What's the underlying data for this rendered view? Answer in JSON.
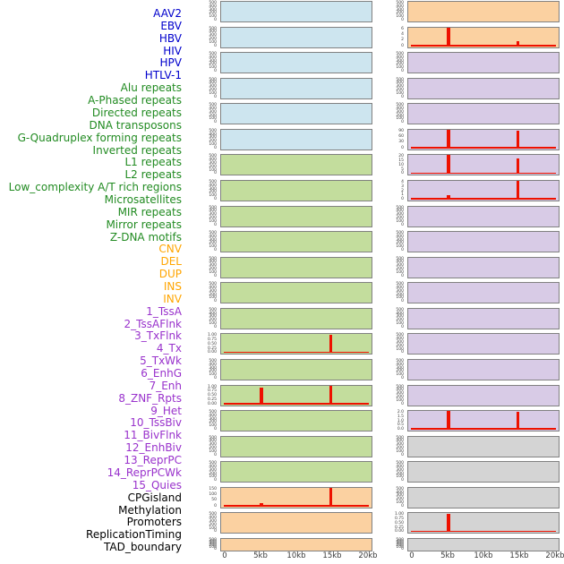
{
  "chart_data": {
    "type": "bar",
    "title": "",
    "layout": {
      "description": "Small-multiples spike/bar tracks: 44 genomic features in 2 columns of 22 panels, column-major order; flat feature-name list on the left",
      "columns": 2,
      "rows_per_column": 22,
      "order": "column-major",
      "grid": false,
      "last_row_short": true
    },
    "x_axis": {
      "ticks": [
        "0",
        "5kb",
        "10kb",
        "15kb",
        "20kb"
      ],
      "range_kb": [
        0,
        20
      ]
    },
    "default_yticks": [
      "500",
      "400",
      "300",
      "200",
      "100",
      "0"
    ],
    "colors": {
      "label": {
        "virus": "#0000cc",
        "repeat": "#228b22",
        "sv": "#ffa500",
        "chromatin": "#9932cc",
        "other": "#000000"
      },
      "bg": {
        "virus": "#cde5ef",
        "repeat": "#c3dd9d",
        "sv": "#fbd1a1",
        "chromatin": "#d8cbe6",
        "other": "#d4d4d4"
      },
      "spike": "#ee1100",
      "border": "#818181",
      "tick_text": "#3b3b3b",
      "axis_text": "#3a3a3a",
      "page_bg": "#ffffff"
    },
    "features": [
      {
        "name": "AAV2",
        "group": "virus"
      },
      {
        "name": "EBV",
        "group": "virus"
      },
      {
        "name": "HBV",
        "group": "virus"
      },
      {
        "name": "HIV",
        "group": "virus"
      },
      {
        "name": "HPV",
        "group": "virus"
      },
      {
        "name": "HTLV-1",
        "group": "virus"
      },
      {
        "name": "Alu repeats",
        "group": "repeat"
      },
      {
        "name": "A-Phased repeats",
        "group": "repeat"
      },
      {
        "name": "Directed repeats",
        "group": "repeat"
      },
      {
        "name": "DNA transposons",
        "group": "repeat"
      },
      {
        "name": "G-Quadruplex forming repeats",
        "group": "repeat"
      },
      {
        "name": "Inverted repeats",
        "group": "repeat"
      },
      {
        "name": "L1 repeats",
        "group": "repeat"
      },
      {
        "name": "L2 repeats",
        "group": "repeat",
        "yticks": [
          "1.00",
          "0.75",
          "0.50",
          "0.25",
          "0.00"
        ],
        "baseline": true,
        "spikes": [
          {
            "kb": 15,
            "frac": 0.735,
            "h": 1.02,
            "value": 1.0
          }
        ]
      },
      {
        "name": "Low_complexity A/T rich regions",
        "group": "repeat"
      },
      {
        "name": "Microsatellites",
        "group": "repeat",
        "yticks": [
          "1.00",
          "0.75",
          "0.50",
          "0.25",
          "0.00"
        ],
        "baseline": true,
        "spikes": [
          {
            "kb": 5,
            "frac": 0.25,
            "h": 0.95,
            "value": 0.95
          },
          {
            "kb": 15,
            "frac": 0.735,
            "h": 1.02,
            "value": 1.0
          }
        ]
      },
      {
        "name": "MIR repeats",
        "group": "repeat"
      },
      {
        "name": "Mirror repeats",
        "group": "repeat"
      },
      {
        "name": "Z-DNA motifs",
        "group": "repeat"
      },
      {
        "name": "CNV",
        "group": "sv",
        "yticks": [
          "150",
          "100",
          "50",
          "0"
        ],
        "baseline": true,
        "spikes": [
          {
            "kb": 5,
            "frac": 0.25,
            "h": 0.2,
            "value": 30
          },
          {
            "kb": 15,
            "frac": 0.735,
            "h": 1.1,
            "value": 170
          }
        ]
      },
      {
        "name": "DEL",
        "group": "sv"
      },
      {
        "name": "DUP",
        "group": "sv"
      },
      {
        "name": "INS",
        "group": "sv"
      },
      {
        "name": "INV",
        "group": "sv",
        "yticks": [
          "6",
          "4",
          "2",
          "0"
        ],
        "baseline": true,
        "spikes": [
          {
            "kb": 5,
            "frac": 0.25,
            "h": 1.1,
            "value": 7
          },
          {
            "kb": 15,
            "frac": 0.735,
            "h": 0.3,
            "value": 2
          }
        ]
      },
      {
        "name": "1_TssA",
        "group": "chromatin"
      },
      {
        "name": "2_TssAFlnk",
        "group": "chromatin"
      },
      {
        "name": "3_TxFlnk",
        "group": "chromatin"
      },
      {
        "name": "4_Tx",
        "group": "chromatin",
        "yticks": [
          "90",
          "60",
          "30",
          "0"
        ],
        "baseline": true,
        "spikes": [
          {
            "kb": 5,
            "frac": 0.25,
            "h": 1.1,
            "value": 95
          },
          {
            "kb": 15,
            "frac": 0.735,
            "h": 0.97,
            "value": 90
          }
        ]
      },
      {
        "name": "5_TxWk",
        "group": "chromatin",
        "yticks": [
          "20",
          "15",
          "10",
          "5",
          "0"
        ],
        "baseline": true,
        "spikes": [
          {
            "kb": 5,
            "frac": 0.25,
            "h": 1.1,
            "value": 21
          },
          {
            "kb": 15,
            "frac": 0.735,
            "h": 0.87,
            "value": 18
          }
        ]
      },
      {
        "name": "6_EnhG",
        "group": "chromatin",
        "yticks": [
          "4",
          "3",
          "2",
          "1",
          "0"
        ],
        "baseline": true,
        "spikes": [
          {
            "kb": 5,
            "frac": 0.25,
            "h": 0.25,
            "value": 1
          },
          {
            "kb": 15,
            "frac": 0.735,
            "h": 1.1,
            "value": 4.2
          }
        ]
      },
      {
        "name": "7_Enh",
        "group": "chromatin"
      },
      {
        "name": "8_ZNF_Rpts",
        "group": "chromatin"
      },
      {
        "name": "9_Het",
        "group": "chromatin"
      },
      {
        "name": "10_TssBiv",
        "group": "chromatin"
      },
      {
        "name": "11_BivFlnk",
        "group": "chromatin"
      },
      {
        "name": "12_EnhBiv",
        "group": "chromatin"
      },
      {
        "name": "13_ReprPC",
        "group": "chromatin"
      },
      {
        "name": "14_ReprPCWk",
        "group": "chromatin"
      },
      {
        "name": "15_Quies",
        "group": "chromatin",
        "yticks": [
          "2.0",
          "1.5",
          "1.0",
          "0.5",
          "0.0"
        ],
        "baseline": true,
        "spikes": [
          {
            "kb": 5,
            "frac": 0.25,
            "h": 1.05,
            "value": 2.1
          },
          {
            "kb": 15,
            "frac": 0.735,
            "h": 1.02,
            "value": 2.1
          }
        ]
      },
      {
        "name": "CPGisland",
        "group": "other"
      },
      {
        "name": "Methylation",
        "group": "other"
      },
      {
        "name": "Promoters",
        "group": "other"
      },
      {
        "name": "ReplicationTiming",
        "group": "other",
        "yticks": [
          "1.00",
          "0.75",
          "0.50",
          "0.25",
          "0.00"
        ],
        "baseline": true,
        "spikes": [
          {
            "kb": 5,
            "frac": 0.25,
            "h": 1.02,
            "value": 1.0
          }
        ]
      },
      {
        "name": "TAD_boundary",
        "group": "other"
      }
    ]
  }
}
